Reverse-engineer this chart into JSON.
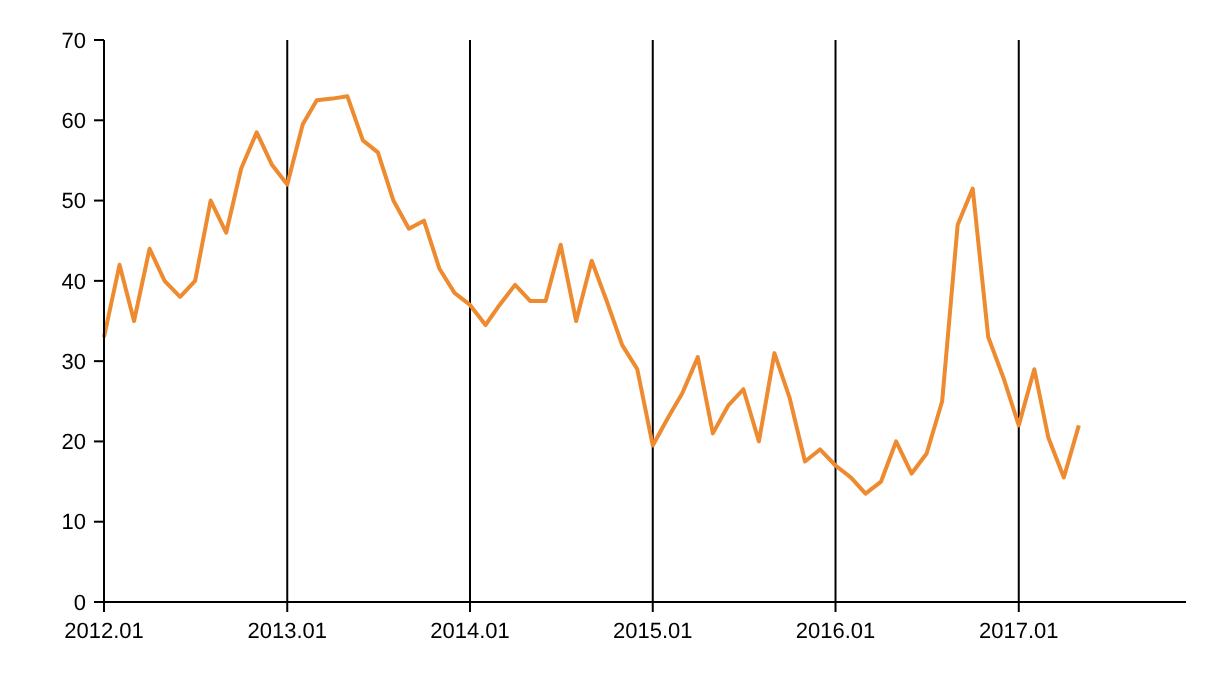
{
  "chart_data": {
    "type": "line",
    "x": [
      "2012-01",
      "2012-02",
      "2012-03",
      "2012-04",
      "2012-05",
      "2012-06",
      "2012-07",
      "2012-08",
      "2012-09",
      "2012-10",
      "2012-11",
      "2012-12",
      "2013-01",
      "2013-02",
      "2013-03",
      "2013-04",
      "2013-05",
      "2013-06",
      "2013-07",
      "2013-08",
      "2013-09",
      "2013-10",
      "2013-11",
      "2013-12",
      "2014-01",
      "2014-02",
      "2014-03",
      "2014-04",
      "2014-05",
      "2014-06",
      "2014-07",
      "2014-08",
      "2014-09",
      "2014-10",
      "2014-11",
      "2014-12",
      "2015-01",
      "2015-02",
      "2015-03",
      "2015-04",
      "2015-05",
      "2015-06",
      "2015-07",
      "2015-08",
      "2015-09",
      "2015-10",
      "2015-11",
      "2015-12",
      "2016-01",
      "2016-02",
      "2016-03",
      "2016-04",
      "2016-05",
      "2016-06",
      "2016-07",
      "2016-08",
      "2016-09",
      "2016-10",
      "2016-11",
      "2016-12",
      "2017-01",
      "2017-02",
      "2017-03",
      "2017-04",
      "2017-05"
    ],
    "series": [
      {
        "color": "#ee8a2f",
        "values": [
          33,
          42,
          35,
          44,
          40,
          38,
          40,
          50,
          46,
          54,
          58.5,
          54.5,
          52,
          59.5,
          62.5,
          62.7,
          63,
          57.5,
          56,
          50,
          46.5,
          47.5,
          41.5,
          38.5,
          37,
          34.5,
          37,
          39.5,
          37.5,
          37.5,
          44.5,
          35,
          42.5,
          37.5,
          32,
          29,
          19.5,
          23,
          26,
          30.5,
          21,
          24.5,
          26.5,
          20,
          31,
          25.5,
          17.5,
          19,
          17,
          15.5,
          13.5,
          15,
          20,
          16,
          18.5,
          25,
          47,
          51.5,
          33,
          28,
          22,
          29,
          20.5,
          15.5,
          22
        ]
      }
    ],
    "xlim": [
      "2012-01",
      "2017-12"
    ],
    "xticks": [
      {
        "value": "2012-01",
        "label": "2012.01"
      },
      {
        "value": "2013-01",
        "label": "2013.01"
      },
      {
        "value": "2014-01",
        "label": "2014.01"
      },
      {
        "value": "2015-01",
        "label": "2015.01"
      },
      {
        "value": "2016-01",
        "label": "2016.01"
      },
      {
        "value": "2017-01",
        "label": "2017.01"
      }
    ],
    "ylim": [
      0,
      70
    ],
    "yticks": [
      0,
      10,
      20,
      30,
      40,
      50,
      60,
      70
    ],
    "grid": "x",
    "marker": "none",
    "line_style": "solid"
  }
}
